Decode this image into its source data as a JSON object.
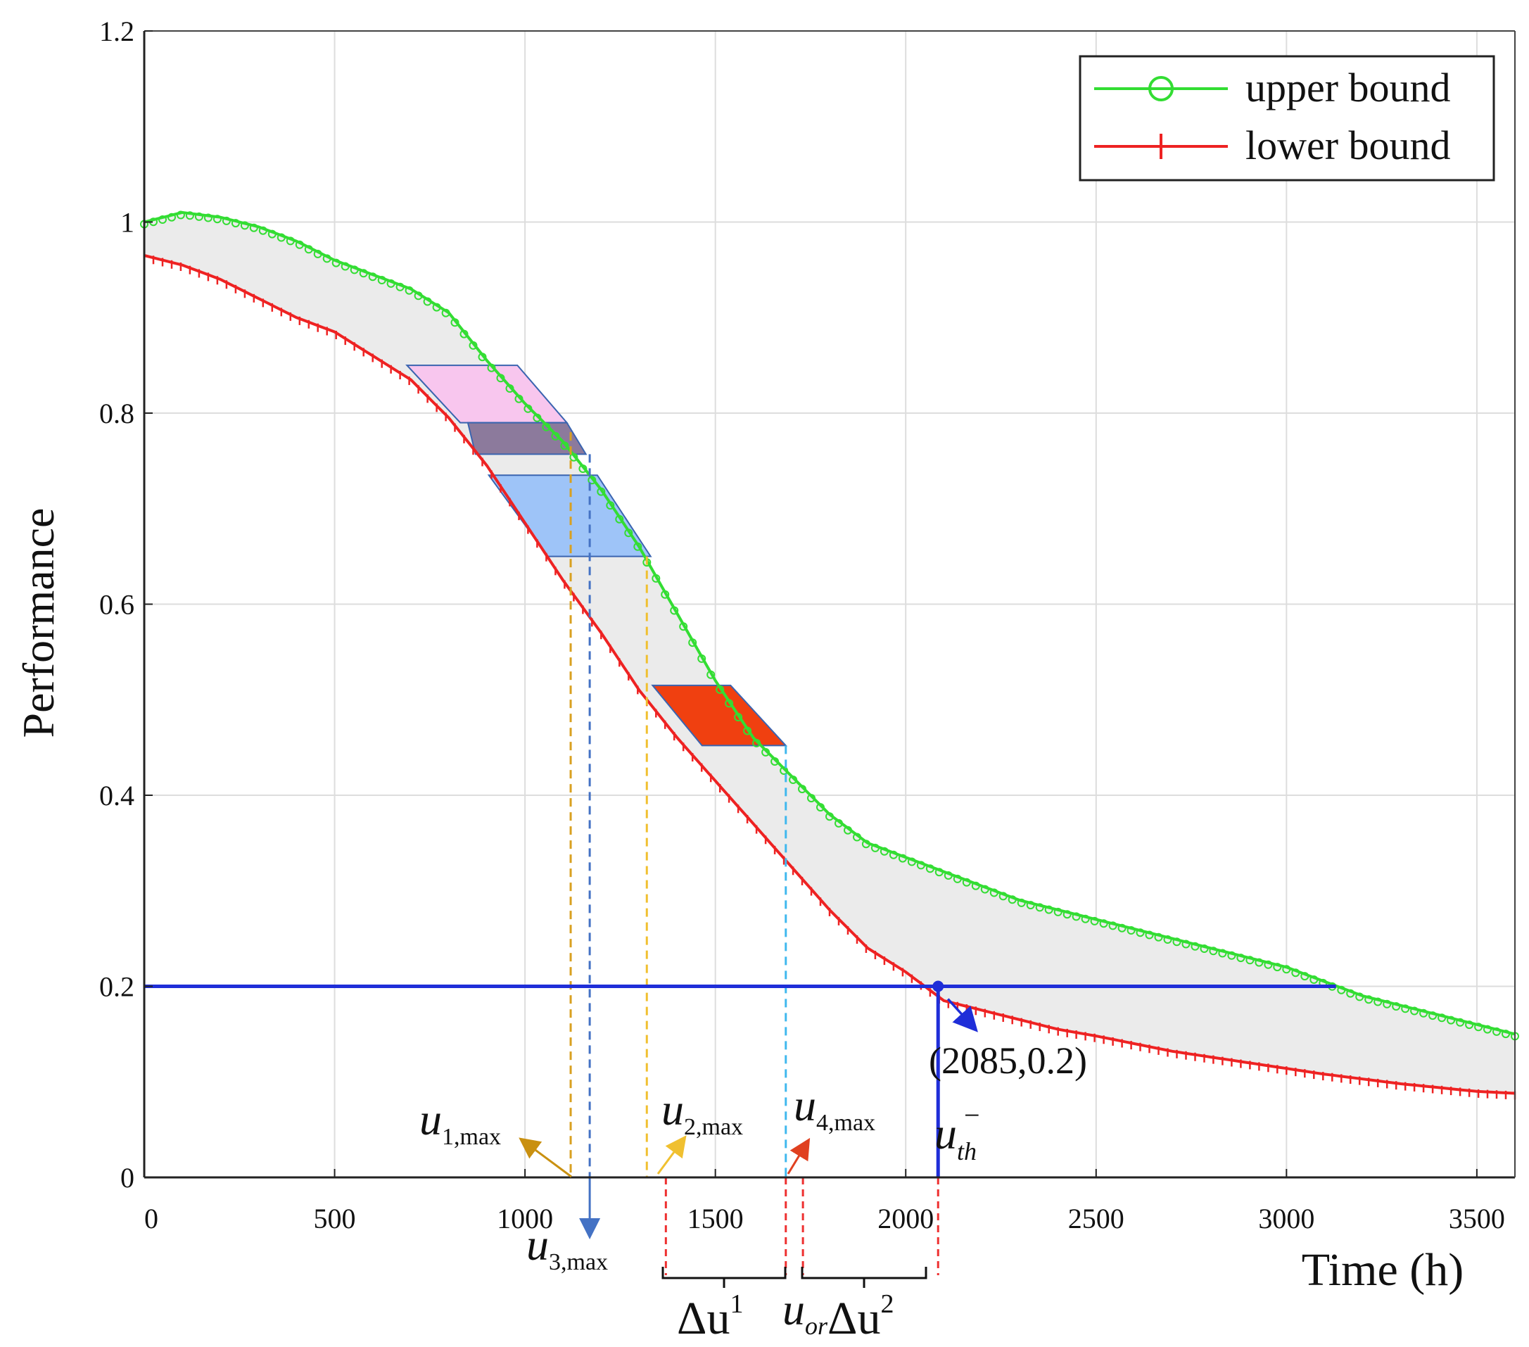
{
  "chart_data": {
    "type": "line",
    "title": "",
    "xlabel": "Time (h)",
    "ylabel": "Performance",
    "xlim": [
      0,
      3600
    ],
    "ylim": [
      0,
      1.2
    ],
    "grid": true,
    "xticks": [
      "0",
      "500",
      "1000",
      "1500",
      "2000",
      "2500",
      "3000",
      "3500"
    ],
    "xtick_values": [
      0,
      500,
      1000,
      1500,
      2000,
      2500,
      3000,
      3500
    ],
    "yticks": [
      "0",
      "0.2",
      "0.4",
      "0.6",
      "0.8",
      "1",
      "1.2"
    ],
    "ytick_values": [
      0,
      0.2,
      0.4,
      0.6,
      0.8,
      1.0,
      1.2
    ],
    "legend": {
      "position": "top-right",
      "entries": [
        "upper bound",
        "lower bound"
      ]
    },
    "series": [
      {
        "name": "upper bound",
        "color": "#33dd33",
        "marker": "circle",
        "x": [
          0,
          100,
          200,
          300,
          400,
          500,
          600,
          700,
          800,
          900,
          1000,
          1100,
          1200,
          1300,
          1400,
          1500,
          1600,
          1700,
          1800,
          1900,
          2000,
          2100,
          2200,
          2300,
          2400,
          2500,
          2600,
          2700,
          2800,
          2900,
          3000,
          3100,
          3200,
          3300,
          3400,
          3500,
          3600
        ],
        "values": [
          1.0,
          1.01,
          1.005,
          0.995,
          0.98,
          0.96,
          0.945,
          0.93,
          0.905,
          0.855,
          0.81,
          0.77,
          0.72,
          0.66,
          0.59,
          0.52,
          0.46,
          0.42,
          0.38,
          0.35,
          0.335,
          0.32,
          0.305,
          0.29,
          0.28,
          0.27,
          0.26,
          0.25,
          0.24,
          0.23,
          0.22,
          0.205,
          0.19,
          0.18,
          0.17,
          0.16,
          0.15
        ]
      },
      {
        "name": "lower bound",
        "color": "#ee2222",
        "marker": "plus",
        "x": [
          0,
          100,
          200,
          300,
          400,
          500,
          600,
          700,
          800,
          900,
          1000,
          1100,
          1200,
          1300,
          1400,
          1500,
          1600,
          1700,
          1800,
          1900,
          2000,
          2050,
          2100,
          2200,
          2300,
          2400,
          2500,
          2600,
          2700,
          2800,
          2900,
          3000,
          3100,
          3200,
          3300,
          3400,
          3500,
          3600
        ],
        "values": [
          0.965,
          0.955,
          0.94,
          0.92,
          0.9,
          0.885,
          0.86,
          0.835,
          0.795,
          0.745,
          0.685,
          0.625,
          0.57,
          0.51,
          0.46,
          0.415,
          0.37,
          0.325,
          0.28,
          0.24,
          0.215,
          0.2,
          0.185,
          0.175,
          0.165,
          0.155,
          0.148,
          0.14,
          0.132,
          0.126,
          0.12,
          0.114,
          0.108,
          0.103,
          0.098,
          0.094,
          0.09,
          0.088
        ]
      }
    ],
    "threshold": {
      "y": 0.2,
      "x_end": 3130,
      "color": "#1f2ed8"
    },
    "point": {
      "x": 2085,
      "y": 0.2,
      "label": "(2085,0.2)"
    },
    "regions": [
      {
        "name": "pink",
        "color": "#f8c6ee",
        "y_top": 0.85,
        "y_bottom": 0.79,
        "tl": 690,
        "tr": 980,
        "bl": 830,
        "br": 1110
      },
      {
        "name": "purple",
        "color": "#8c7a9c",
        "y_top": 0.79,
        "y_bottom": 0.757,
        "tl": 850,
        "tr": 1110,
        "bl": 870,
        "br": 1160
      },
      {
        "name": "blue",
        "color": "#9ec4f8",
        "y_top": 0.735,
        "y_bottom": 0.65,
        "tl": 905,
        "tr": 1190,
        "bl": 1060,
        "br": 1330
      },
      {
        "name": "orange-red",
        "color": "#f04010",
        "y_top": 0.515,
        "y_bottom": 0.452,
        "tl": 1335,
        "tr": 1540,
        "bl": 1465,
        "br": 1685
      }
    ],
    "vlines": [
      {
        "x": 1120,
        "y_top": 0.78,
        "color": "#d9a020",
        "style": "dashed"
      },
      {
        "x": 1170,
        "y_top": 0.757,
        "color": "#4472c4",
        "style": "dashed"
      },
      {
        "x": 1320,
        "y_top": 0.65,
        "color": "#f0c030",
        "style": "dashed"
      },
      {
        "x": 1685,
        "y_top": 0.452,
        "color": "#40b8ee",
        "style": "dashed"
      },
      {
        "x": 2085,
        "y_top": 0.2,
        "color": "#1f2ed8",
        "style": "solid"
      }
    ],
    "annotations": {
      "u1": {
        "main": "u",
        "sub": "1,max"
      },
      "u2": {
        "main": "u",
        "sub": "2,max"
      },
      "u3": {
        "main": "u",
        "sub": "3,max"
      },
      "u4": {
        "main": "u",
        "sub": "4,max"
      },
      "uth": {
        "main": "u",
        "sub": "th",
        "sup": "−"
      },
      "du1": {
        "main": "Δu",
        "sup": "1"
      },
      "du2": {
        "pre": "u",
        "pre_sub": "or",
        "main": "Δu",
        "sup": "2"
      }
    }
  }
}
